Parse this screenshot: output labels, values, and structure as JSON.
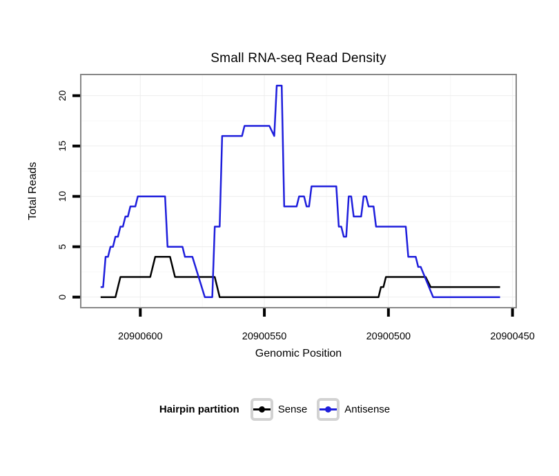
{
  "title": "Small RNA-seq Read Density",
  "legend": {
    "label": "Hairpin partition",
    "items": [
      {
        "name": "Sense",
        "color": "#000000"
      },
      {
        "name": "Antisense",
        "color": "#1e1edc"
      }
    ]
  },
  "chart_data": {
    "type": "line",
    "title": "Small RNA-seq Read Density",
    "xlabel": "Genomic Position",
    "ylabel": "Total Reads",
    "x_reversed": true,
    "xlim": [
      20900624,
      20900448.5
    ],
    "ylim": [
      -1.05,
      22.1
    ],
    "x_ticks": [
      20900600,
      20900550,
      20900500,
      20900450
    ],
    "y_ticks": [
      0,
      5,
      10,
      15,
      20
    ],
    "x_minor_gridlines": [
      20900575,
      20900525,
      20900475
    ],
    "y_minor_gridlines": [
      2.5,
      7.5,
      12.5,
      17.5
    ],
    "grid": "on",
    "legend_position": "bottom",
    "legend_title": "Hairpin partition",
    "colors": {
      "major_grid": "#ededed",
      "minor_grid": "#f6f6f6",
      "panel_border": "#878787",
      "tick": "#000000"
    },
    "series": [
      {
        "name": "Sense",
        "color": "#000000",
        "points": [
          [
            20900616,
            0
          ],
          [
            20900610,
            0
          ],
          [
            20900608,
            2
          ],
          [
            20900596,
            2
          ],
          [
            20900594,
            4
          ],
          [
            20900588,
            4
          ],
          [
            20900586,
            2
          ],
          [
            20900570,
            2
          ],
          [
            20900568,
            0
          ],
          [
            20900504,
            0
          ],
          [
            20900503,
            1
          ],
          [
            20900502,
            1
          ],
          [
            20900501,
            2
          ],
          [
            20900485,
            2
          ],
          [
            20900483,
            1
          ],
          [
            20900455,
            1
          ]
        ]
      },
      {
        "name": "Antisense",
        "color": "#1e1edc",
        "points": [
          [
            20900616,
            1
          ],
          [
            20900615,
            1
          ],
          [
            20900614,
            4
          ],
          [
            20900613,
            4
          ],
          [
            20900612,
            5
          ],
          [
            20900611,
            5
          ],
          [
            20900610,
            6
          ],
          [
            20900609,
            6
          ],
          [
            20900608,
            7
          ],
          [
            20900607,
            7
          ],
          [
            20900606,
            8
          ],
          [
            20900605,
            8
          ],
          [
            20900604,
            9
          ],
          [
            20900602,
            9
          ],
          [
            20900601,
            10
          ],
          [
            20900590,
            10
          ],
          [
            20900589,
            5
          ],
          [
            20900583,
            5
          ],
          [
            20900582,
            4
          ],
          [
            20900579,
            4
          ],
          [
            20900574,
            0
          ],
          [
            20900571,
            0
          ],
          [
            20900570,
            7
          ],
          [
            20900568,
            7
          ],
          [
            20900567,
            16
          ],
          [
            20900559,
            16
          ],
          [
            20900558,
            17
          ],
          [
            20900548,
            17
          ],
          [
            20900546,
            16
          ],
          [
            20900545,
            21
          ],
          [
            20900543,
            21
          ],
          [
            20900542,
            9
          ],
          [
            20900537,
            9
          ],
          [
            20900536,
            10
          ],
          [
            20900534,
            10
          ],
          [
            20900533,
            9
          ],
          [
            20900532,
            9
          ],
          [
            20900531,
            11
          ],
          [
            20900521,
            11
          ],
          [
            20900520,
            7
          ],
          [
            20900519,
            7
          ],
          [
            20900518,
            6
          ],
          [
            20900517,
            6
          ],
          [
            20900516,
            10
          ],
          [
            20900515,
            10
          ],
          [
            20900514,
            8
          ],
          [
            20900511,
            8
          ],
          [
            20900510,
            10
          ],
          [
            20900509,
            10
          ],
          [
            20900508,
            9
          ],
          [
            20900506,
            9
          ],
          [
            20900505,
            7
          ],
          [
            20900493,
            7
          ],
          [
            20900492,
            4
          ],
          [
            20900489,
            4
          ],
          [
            20900488,
            3
          ],
          [
            20900487,
            3
          ],
          [
            20900482,
            0
          ],
          [
            20900455,
            0
          ]
        ]
      }
    ]
  }
}
